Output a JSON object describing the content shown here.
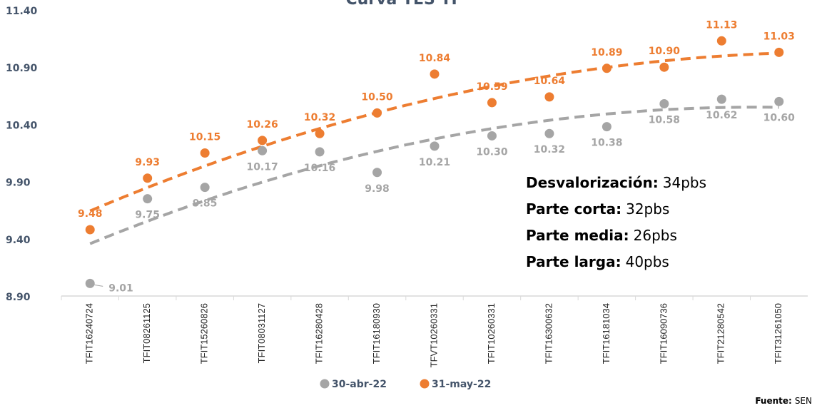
{
  "chart_data": {
    "type": "scatter",
    "title": "Curva TES TF",
    "categories": [
      "TFIT16240724",
      "TFIT08261125",
      "TFIT15260826",
      "TFIT08031127",
      "TFIT16280428",
      "TFIT16180930",
      "TFVT10260331",
      "TFIT10260331",
      "TFIT16300632",
      "TFIT16181034",
      "TFIT16090736",
      "TFIT21280542",
      "TFIT31261050"
    ],
    "series": [
      {
        "name": "30-abr-22",
        "color": "#a5a5a5",
        "values": [
          9.01,
          9.75,
          9.85,
          10.17,
          10.16,
          9.98,
          10.21,
          10.3,
          10.32,
          10.38,
          10.58,
          10.62,
          10.6
        ],
        "value_labels": [
          "9.01",
          "9.75",
          "9.85",
          "10.17",
          "10.16",
          "9.98",
          "10.21",
          "10.30",
          "10.32",
          "10.38",
          "10.58",
          "10.62",
          "10.60"
        ]
      },
      {
        "name": "31-may-22",
        "color": "#ed7d31",
        "values": [
          9.48,
          9.93,
          10.15,
          10.26,
          10.32,
          10.5,
          10.84,
          10.59,
          10.64,
          10.89,
          10.9,
          11.13,
          11.03
        ],
        "value_labels": [
          "9.48",
          "9.93",
          "10.15",
          "10.26",
          "10.32",
          "10.50",
          "10.84",
          "10.59",
          "10.64",
          "10.89",
          "10.90",
          "11.13",
          "11.03"
        ]
      }
    ],
    "trendline": "polynomial",
    "ylim": [
      8.9,
      11.4
    ],
    "yticks": [
      {
        "value": 8.9,
        "label": "8.90"
      },
      {
        "value": 9.4,
        "label": "9.40"
      },
      {
        "value": 9.9,
        "label": "9.90"
      },
      {
        "value": 10.4,
        "label": "10.40"
      },
      {
        "value": 10.9,
        "label": "10.90"
      },
      {
        "value": 11.4,
        "label": "11.40"
      }
    ],
    "annotations": [
      {
        "label": "Desvalorización:",
        "text": "34pbs"
      },
      {
        "label": "Parte corta:",
        "text": "32pbs"
      },
      {
        "label": "Parte media:",
        "text": "26pbs"
      },
      {
        "label": "Parte larga:",
        "text": "40pbs"
      }
    ],
    "source": {
      "label": "Fuente:",
      "text": "SEN"
    }
  }
}
